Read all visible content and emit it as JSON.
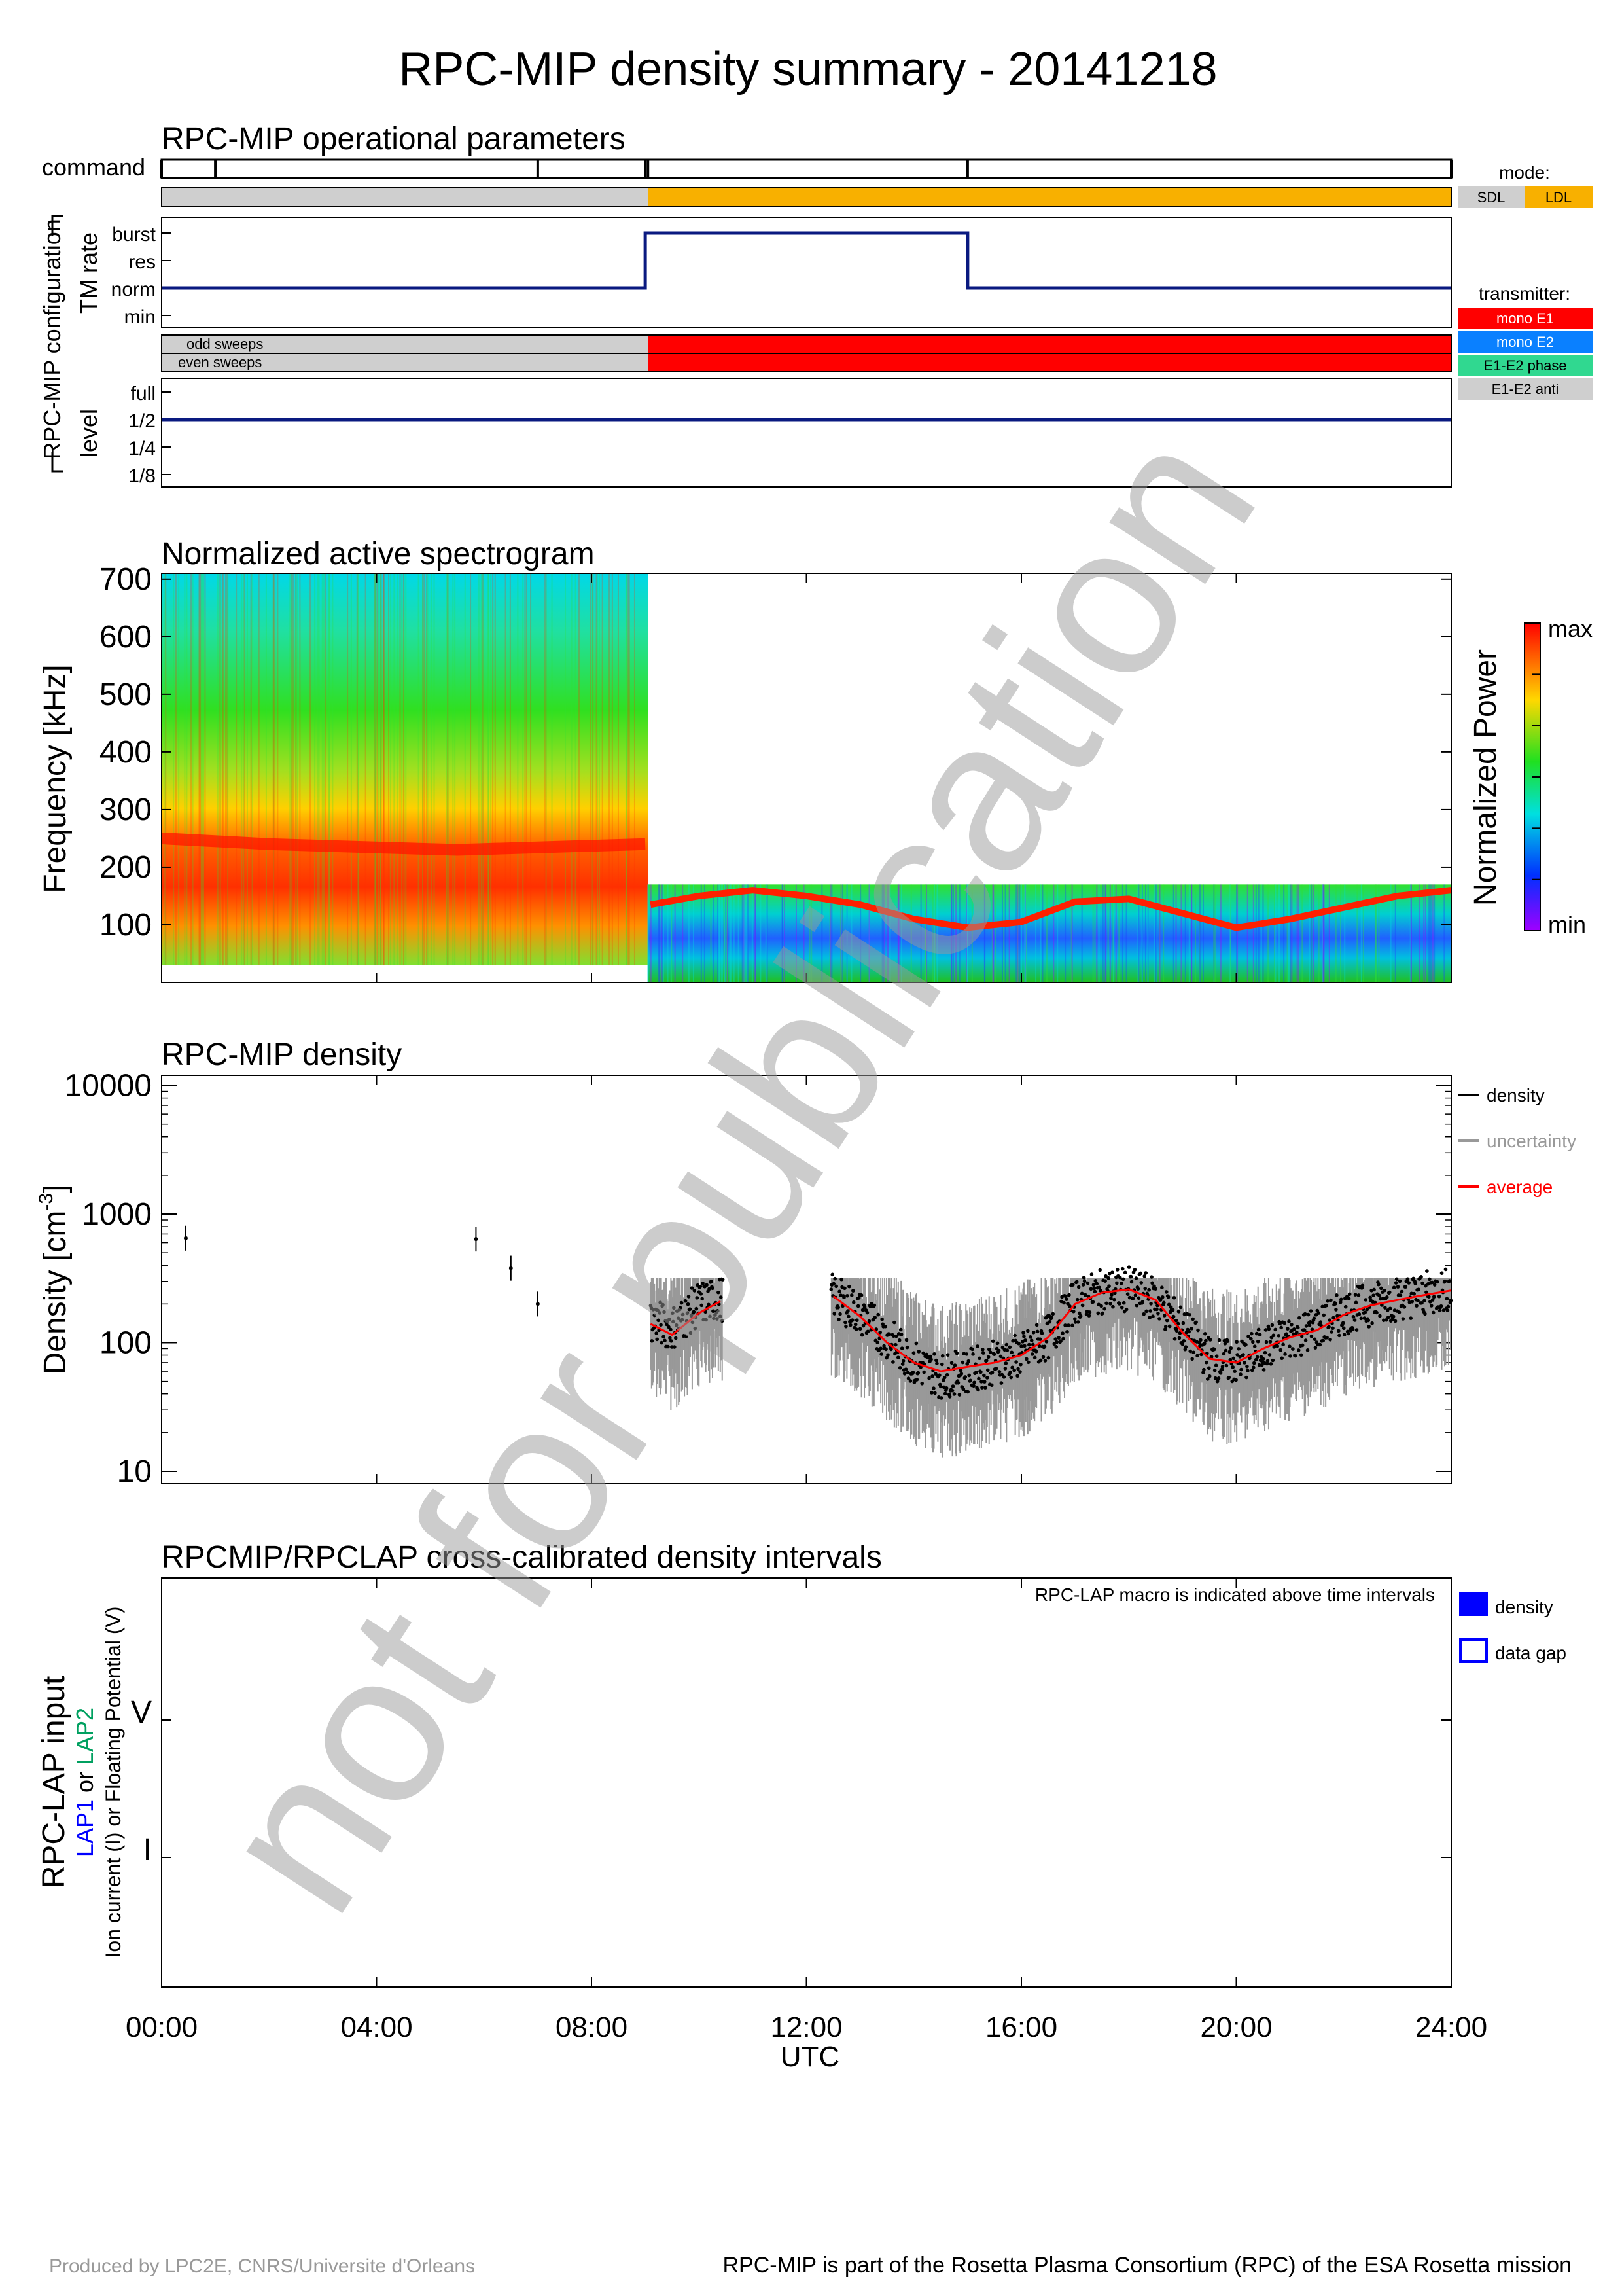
{
  "title": "RPC-MIP density summary - 20141218",
  "x_axis": {
    "ticks": [
      "00:00",
      "04:00",
      "08:00",
      "12:00",
      "16:00",
      "20:00",
      "24:00"
    ],
    "label": "UTC",
    "range_hours": [
      0,
      24
    ]
  },
  "operational": {
    "title": "RPC-MIP operational parameters",
    "command_label": "command",
    "config_label": "RPC-MIP configuration",
    "tm_rate_label": "TM rate",
    "tm_rate_levels": [
      "burst",
      "res",
      "norm",
      "min"
    ],
    "odd_sweeps_label": "odd sweeps",
    "even_sweeps_label": "even sweeps",
    "level_label": "level",
    "level_values": [
      "full",
      "1/2",
      "1/4",
      "1/8"
    ],
    "mode_legend_title": "mode:",
    "mode_legend": [
      {
        "label": "SDL",
        "color": "#cfcfcf"
      },
      {
        "label": "LDL",
        "color": "#f8b000"
      }
    ],
    "transmitter_legend_title": "transmitter:",
    "transmitter_legend": [
      {
        "label": "mono E1",
        "color": "#ff0000"
      },
      {
        "label": "mono E2",
        "color": "#0a80ff"
      },
      {
        "label": "E1-E2 phase",
        "color": "#30d890"
      },
      {
        "label": "E1-E2 anti",
        "color": "#cfcfcf"
      }
    ]
  },
  "spectrogram": {
    "title": "Normalized active spectrogram",
    "ylabel": "Frequency [kHz]",
    "yticks": [
      "700",
      "600",
      "500",
      "400",
      "300",
      "200",
      "100"
    ],
    "colorbar_label": "Normalized Power",
    "colorbar_max": "max",
    "colorbar_min": "min"
  },
  "density": {
    "title": "RPC-MIP density",
    "ylabel_main": "Density [cm",
    "ylabel_sup": "-3",
    "ylabel_end": "]",
    "yticks": [
      "10000",
      "1000",
      "100",
      "10"
    ],
    "legend": [
      {
        "label": "density",
        "color": "#000000"
      },
      {
        "label": "uncertainty",
        "color": "#999999"
      },
      {
        "label": "average",
        "color": "#ff0000"
      }
    ]
  },
  "lap": {
    "title": "RPCMIP/RPCLAP cross-calibrated density intervals",
    "note": "RPC-LAP macro is indicated above time intervals",
    "ylabel_outer": "RPC-LAP input",
    "ylabel_lap1": "LAP1",
    "ylabel_or": " or ",
    "ylabel_lap2": "LAP2",
    "ylabel_inner": "Ion current (I) or Floating Potential (V)",
    "ytick_v": "V",
    "ytick_i": "I",
    "legend_density": "density",
    "legend_gap": "data gap"
  },
  "watermark": "not for publication",
  "footer_left": "Produced by LPC2E, CNRS/Universite d'Orleans",
  "footer_right": "RPC-MIP is part of the Rosetta Plasma Consortium (RPC) of the ESA Rosetta mission",
  "chart_data": [
    {
      "type": "line",
      "title": "RPC-MIP operational parameters",
      "series": [
        {
          "name": "TM rate",
          "x": [
            0,
            9.0,
            9.0,
            15.0,
            15.0,
            24
          ],
          "y": [
            "norm",
            "norm",
            "burst",
            "burst",
            "norm",
            "norm"
          ]
        },
        {
          "name": "level",
          "x": [
            0,
            24
          ],
          "y": [
            "1/2",
            "1/2"
          ]
        }
      ],
      "command_times_hours": [
        0,
        1.0,
        7.0,
        9.0,
        9.05,
        15.0,
        24
      ],
      "mode_intervals": [
        {
          "from": 0,
          "to": 9.05,
          "mode": "SDL"
        },
        {
          "from": 9.05,
          "to": 24,
          "mode": "LDL"
        }
      ],
      "transmitter_intervals": [
        {
          "from": 0,
          "to": 9.05,
          "transmitter": "E1-E2 anti"
        },
        {
          "from": 9.05,
          "to": 24,
          "transmitter": "mono E1"
        }
      ]
    },
    {
      "type": "heatmap",
      "title": "Normalized active spectrogram",
      "ylabel": "Frequency [kHz]",
      "ylim": [
        0,
        710
      ],
      "xlim": [
        0,
        24
      ],
      "segments": [
        {
          "from": 0,
          "to": 9.05,
          "fmax": 710,
          "fmin": 30
        },
        {
          "from": 9.05,
          "to": 24,
          "fmax": 170,
          "fmin": 0
        }
      ],
      "plasma_line_khz": [
        {
          "t": 0,
          "f": 250
        },
        {
          "t": 2,
          "f": 240
        },
        {
          "t": 5.5,
          "f": 230
        },
        {
          "t": 9,
          "f": 240
        },
        {
          "t": 9.1,
          "f": 135
        },
        {
          "t": 10,
          "f": 150
        },
        {
          "t": 11,
          "f": 160
        },
        {
          "t": 12,
          "f": 150
        },
        {
          "t": 13,
          "f": 135
        },
        {
          "t": 14,
          "f": 110
        },
        {
          "t": 15,
          "f": 95
        },
        {
          "t": 16,
          "f": 105
        },
        {
          "t": 17,
          "f": 140
        },
        {
          "t": 18,
          "f": 145
        },
        {
          "t": 19,
          "f": 120
        },
        {
          "t": 20,
          "f": 95
        },
        {
          "t": 21,
          "f": 110
        },
        {
          "t": 22,
          "f": 130
        },
        {
          "t": 23,
          "f": 150
        },
        {
          "t": 24,
          "f": 160
        }
      ]
    },
    {
      "type": "scatter",
      "title": "RPC-MIP density",
      "ylabel": "Density [cm-3]",
      "yscale": "log",
      "ylim": [
        8,
        12000
      ],
      "xlim": [
        0,
        24
      ],
      "series": [
        {
          "name": "density",
          "points": [
            {
              "t": 0.45,
              "n": 650
            },
            {
              "t": 5.85,
              "n": 640
            },
            {
              "t": 6.5,
              "n": 380
            },
            {
              "t": 7.0,
              "n": 200
            },
            {
              "t": 9.1,
              "n": 150
            },
            {
              "t": 9.5,
              "n": 130
            },
            {
              "t": 10.0,
              "n": 200
            },
            {
              "t": 10.4,
              "n": 220
            },
            {
              "t": 12.5,
              "n": 230
            },
            {
              "t": 13.0,
              "n": 170
            },
            {
              "t": 13.5,
              "n": 110
            },
            {
              "t": 14.0,
              "n": 70
            },
            {
              "t": 14.5,
              "n": 55
            },
            {
              "t": 15.0,
              "n": 60
            },
            {
              "t": 15.5,
              "n": 70
            },
            {
              "t": 16.0,
              "n": 80
            },
            {
              "t": 16.5,
              "n": 110
            },
            {
              "t": 17.0,
              "n": 210
            },
            {
              "t": 17.5,
              "n": 250
            },
            {
              "t": 18.0,
              "n": 260
            },
            {
              "t": 18.5,
              "n": 220
            },
            {
              "t": 19.0,
              "n": 130
            },
            {
              "t": 19.5,
              "n": 75
            },
            {
              "t": 20.0,
              "n": 70
            },
            {
              "t": 20.5,
              "n": 90
            },
            {
              "t": 21.0,
              "n": 110
            },
            {
              "t": 21.5,
              "n": 130
            },
            {
              "t": 22.0,
              "n": 170
            },
            {
              "t": 22.5,
              "n": 200
            },
            {
              "t": 23.0,
              "n": 220
            },
            {
              "t": 23.5,
              "n": 240
            },
            {
              "t": 24.0,
              "n": 260
            }
          ]
        },
        {
          "name": "average",
          "points": [
            {
              "t": 9.1,
              "n": 140
            },
            {
              "t": 9.5,
              "n": 115
            },
            {
              "t": 10.0,
              "n": 170
            },
            {
              "t": 10.4,
              "n": 210
            },
            {
              "t": 12.5,
              "n": 230
            },
            {
              "t": 13.0,
              "n": 160
            },
            {
              "t": 13.5,
              "n": 100
            },
            {
              "t": 14.0,
              "n": 70
            },
            {
              "t": 14.5,
              "n": 60
            },
            {
              "t": 15.0,
              "n": 65
            },
            {
              "t": 15.5,
              "n": 70
            },
            {
              "t": 16.0,
              "n": 80
            },
            {
              "t": 16.5,
              "n": 110
            },
            {
              "t": 17.0,
              "n": 200
            },
            {
              "t": 17.5,
              "n": 245
            },
            {
              "t": 18.0,
              "n": 260
            },
            {
              "t": 18.5,
              "n": 215
            },
            {
              "t": 19.0,
              "n": 120
            },
            {
              "t": 19.5,
              "n": 75
            },
            {
              "t": 20.0,
              "n": 70
            },
            {
              "t": 20.5,
              "n": 90
            },
            {
              "t": 21.0,
              "n": 110
            },
            {
              "t": 21.5,
              "n": 125
            },
            {
              "t": 22.0,
              "n": 165
            },
            {
              "t": 22.5,
              "n": 195
            },
            {
              "t": 23.0,
              "n": 215
            },
            {
              "t": 23.5,
              "n": 235
            },
            {
              "t": 24.0,
              "n": 255
            }
          ]
        }
      ]
    },
    {
      "type": "bar",
      "title": "RPCMIP/RPCLAP cross-calibrated density intervals",
      "intervals": []
    }
  ]
}
